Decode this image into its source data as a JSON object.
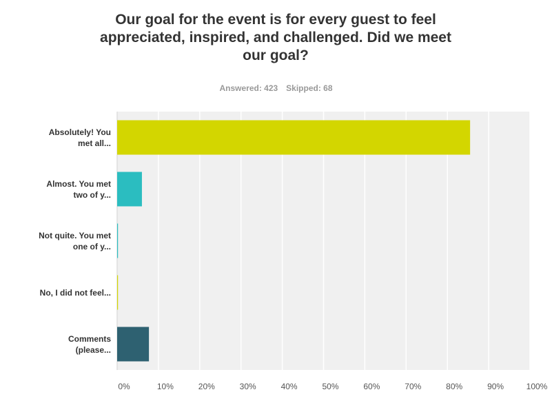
{
  "chart_data": {
    "type": "hbar",
    "title": "Our goal for the event is for every guest to feel appreciated, inspired, and challenged. Did we meet our goal?",
    "answered": "Answered: 423",
    "skipped": "Skipped: 68",
    "categories": [
      "Absolutely! You met all...",
      "Almost. You met two of y...",
      "Not quite. You met one of y...",
      "No, I did not feel...",
      "Comments (please..."
    ],
    "values": [
      85.5,
      6,
      0.2,
      0.2,
      7.7
    ],
    "colors": [
      "#d3d600",
      "#2bbdc0",
      "#2bbdc0",
      "#d3d600",
      "#2e6171"
    ],
    "xlim": [
      0,
      100
    ],
    "xticks": [
      {
        "value": 0,
        "label": "0%"
      },
      {
        "value": 10,
        "label": "10%"
      },
      {
        "value": 20,
        "label": "20%"
      },
      {
        "value": 30,
        "label": "30%"
      },
      {
        "value": 40,
        "label": "40%"
      },
      {
        "value": 50,
        "label": "50%"
      },
      {
        "value": 60,
        "label": "60%"
      },
      {
        "value": 70,
        "label": "70%"
      },
      {
        "value": 80,
        "label": "80%"
      },
      {
        "value": 90,
        "label": "90%"
      },
      {
        "value": 100,
        "label": "100%"
      }
    ],
    "grid": true
  }
}
